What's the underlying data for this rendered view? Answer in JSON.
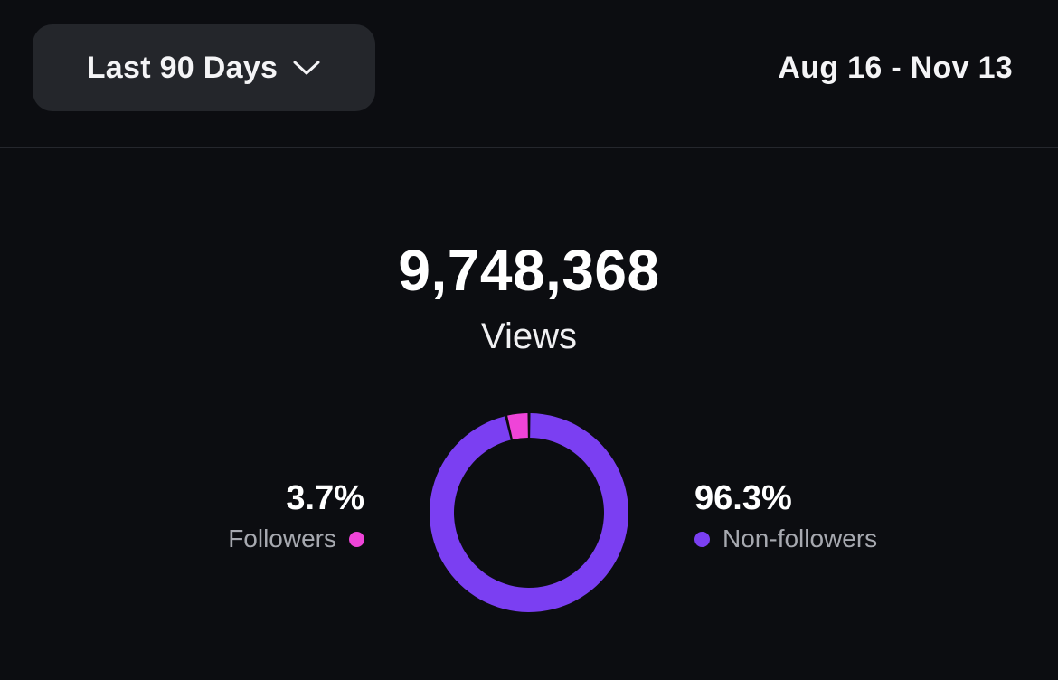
{
  "filter": {
    "range_label": "Last 90 Days",
    "chevron_icon": "chevron-down-icon"
  },
  "date_range": "Aug 16 - Nov 13",
  "summary": {
    "total": "9,748,368",
    "label": "Views"
  },
  "breakdown": {
    "followers": {
      "value": "3.7%",
      "label": "Followers",
      "color": "#ef44d8"
    },
    "non_followers": {
      "value": "96.3%",
      "label": "Non-followers",
      "color": "#7b3ff2"
    }
  },
  "chart_data": {
    "type": "pie",
    "categories": [
      "Followers",
      "Non-followers"
    ],
    "values": [
      3.7,
      96.3
    ],
    "colors": [
      "#ef44d8",
      "#7b3ff2"
    ],
    "donut": true
  }
}
